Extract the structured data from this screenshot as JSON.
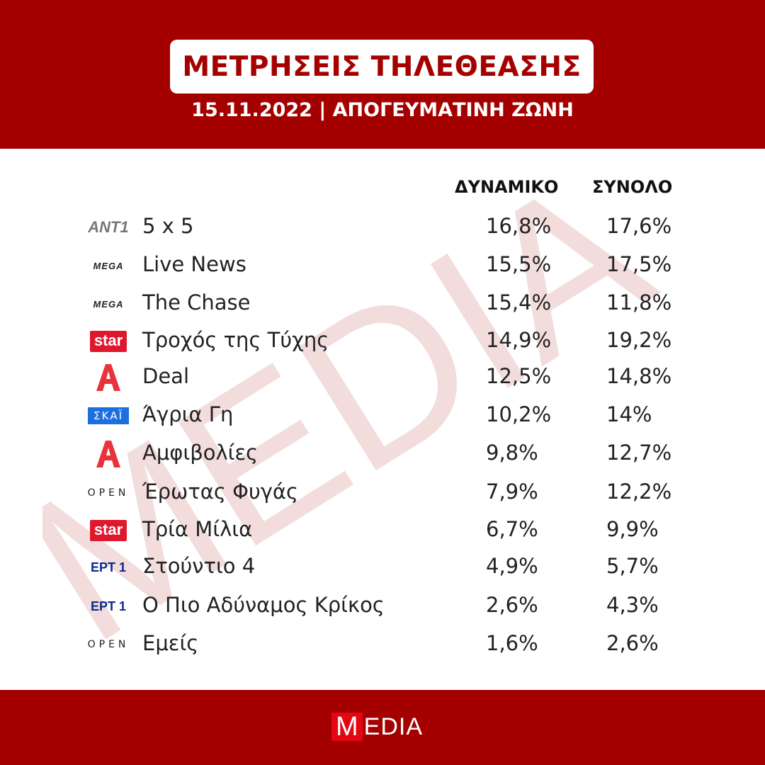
{
  "header": {
    "title": "ΜΕΤΡΗΣΕΙΣ ΤΗΛΕΘΕΑΣΗΣ",
    "subtitle": "15.11.2022 | ΑΠΟΓΕΥΜΑΤΙΝΗ ΖΩΝΗ"
  },
  "columns": {
    "dynamic": "ΔΥΝΑΜΙΚΟ",
    "total": "ΣΥΝΟΛΟ"
  },
  "rows": [
    {
      "channel_logo": "ΑΝΤ1",
      "show": "5 x 5",
      "dynamic": "16,8%",
      "total": "17,6%"
    },
    {
      "channel_logo": "MEGA",
      "show": "Live News",
      "dynamic": "15,5%",
      "total": "17,5%"
    },
    {
      "channel_logo": "MEGA",
      "show": "The Chase",
      "dynamic": "15,4%",
      "total": "11,8%"
    },
    {
      "channel_logo": "star",
      "show": "Τροχός της Τύχης",
      "dynamic": "14,9%",
      "total": "19,2%"
    },
    {
      "channel_logo": "A",
      "show": "Deal",
      "dynamic": "12,5%",
      "total": "14,8%"
    },
    {
      "channel_logo": "ΣΚΑΪ",
      "show": "Άγρια Γη",
      "dynamic": "10,2%",
      "total": "14%"
    },
    {
      "channel_logo": "A",
      "show": "Αμφιβολίες",
      "dynamic": "9,8%",
      "total": "12,7%"
    },
    {
      "channel_logo": "OPEN",
      "show": "Έρωτας Φυγάς",
      "dynamic": "7,9%",
      "total": "12,2%"
    },
    {
      "channel_logo": "star",
      "show": "Τρία Μίλια",
      "dynamic": "6,7%",
      "total": "9,9%"
    },
    {
      "channel_logo": "ΕΡΤ 1",
      "show": "Στούντιο 4",
      "dynamic": "4,9%",
      "total": "5,7%"
    },
    {
      "channel_logo": "ΕΡΤ 1",
      "show": "Ο Πιο Αδύναμος Κρίκος",
      "dynamic": "2,6%",
      "total": "4,3%"
    },
    {
      "channel_logo": "OPEN",
      "show": "Εμείς",
      "dynamic": "1,6%",
      "total": "2,6%"
    }
  ],
  "watermark": "MEDIA",
  "footer": {
    "brand_m": "M",
    "brand_rest": "EDIA"
  },
  "colors": {
    "brand_red": "#a50000",
    "star_red": "#e0182d",
    "alpha_red": "#e8333a",
    "skai_blue": "#1d6fe0",
    "ert_blue": "#0a2a8a"
  }
}
